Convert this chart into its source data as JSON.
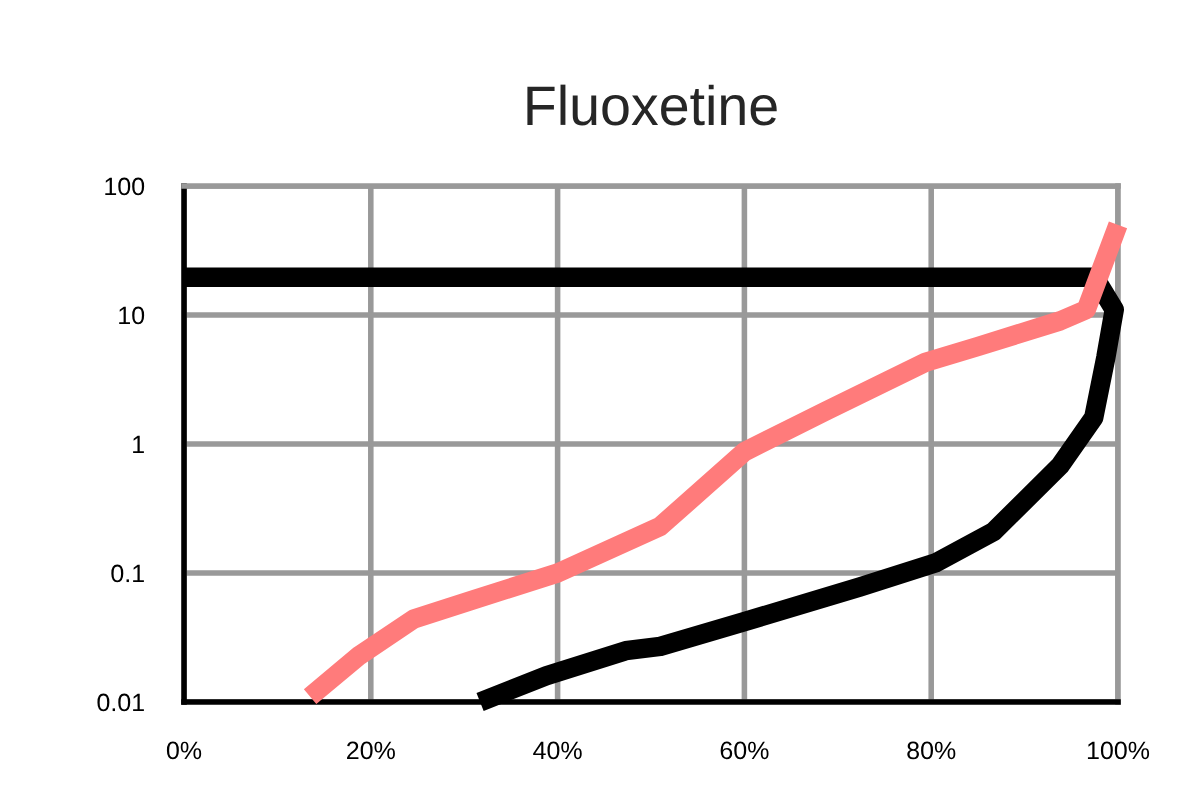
{
  "chart_data": {
    "type": "line",
    "title": "Fluoxetine",
    "log": "y",
    "grid": true,
    "marker": "none",
    "line_style": "solid",
    "xlim": [
      0,
      100
    ],
    "ylim": [
      0.01,
      100
    ],
    "xticks": [
      {
        "value": 0,
        "label": "0%"
      },
      {
        "value": 20,
        "label": "20%"
      },
      {
        "value": 40,
        "label": "40%"
      },
      {
        "value": 60,
        "label": "60%"
      },
      {
        "value": 80,
        "label": "80%"
      },
      {
        "value": 100,
        "label": "100%"
      }
    ],
    "yticks": [
      {
        "value": 0.01,
        "label": "0.01"
      },
      {
        "value": 0.1,
        "label": "0.1"
      },
      {
        "value": 1,
        "label": "1"
      },
      {
        "value": 10,
        "label": "10"
      },
      {
        "value": 100,
        "label": "100"
      }
    ],
    "series": [
      {
        "color": "#000000",
        "x": [
          31.7,
          38.8,
          47.3,
          51,
          60,
          72.4,
          80.5,
          86.7,
          93.8,
          97.4,
          98.7,
          99.6,
          97.5,
          0
        ],
        "values": [
          0.01,
          0.016,
          0.025,
          0.027,
          0.042,
          0.078,
          0.12,
          0.21,
          0.68,
          1.6,
          4.7,
          11,
          19.6,
          19.6
        ]
      },
      {
        "color": "#ff7b7b",
        "x": [
          13.5,
          18.8,
          24.6,
          31,
          40,
          51,
          60,
          68.7,
          79.4,
          85,
          93.8,
          96.6,
          100
        ],
        "values": [
          0.011,
          0.023,
          0.044,
          0.062,
          0.1,
          0.23,
          0.87,
          1.8,
          4.3,
          5.7,
          9,
          11,
          50
        ]
      }
    ]
  }
}
